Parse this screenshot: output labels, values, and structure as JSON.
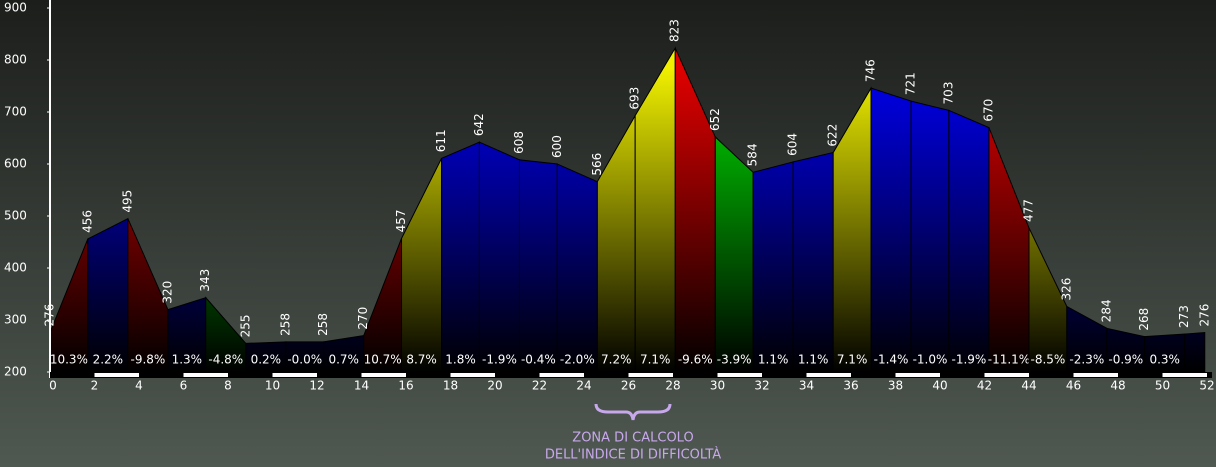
{
  "chart_data": {
    "type": "elevation-profile",
    "x": [
      0,
      1.7,
      3.5,
      5.3,
      7.0,
      8.8,
      10.6,
      12.3,
      14.1,
      15.8,
      17.6,
      19.3,
      21.1,
      22.8,
      24.6,
      26.3,
      28.1,
      29.9,
      31.6,
      33.4,
      35.2,
      36.9,
      38.7,
      40.4,
      42.2,
      44.0,
      45.7,
      47.5,
      49.2,
      51.0,
      51.9
    ],
    "values": [
      276,
      456,
      495,
      320,
      343,
      255,
      258,
      258,
      270,
      457,
      611,
      642,
      608,
      600,
      566,
      693,
      823,
      652,
      584,
      604,
      622,
      746,
      721,
      703,
      670,
      477,
      326,
      284,
      268,
      273,
      276
    ],
    "segment_labels": [
      "10.3%",
      "2.2%",
      "-9.8%",
      "1.3%",
      "-4.8%",
      "0.2%",
      "-0.0%",
      "0.7%",
      "10.7%",
      "8.7%",
      "1.8%",
      "-1.9%",
      "-0.4%",
      "-2.0%",
      "7.2%",
      "7.1%",
      "-9.6%",
      "-3.9%",
      "1.1%",
      "1.1%",
      "7.1%",
      "-1.4%",
      "-1.0%",
      "-1.9%",
      "-11.1%",
      "-8.5%",
      "-2.3%",
      "-0.9%",
      "0.3%",
      null
    ],
    "segment_colors": [
      "#e00000",
      "#0000f0",
      "#e00000",
      "#0000f0",
      "#00e000",
      "#0000f0",
      "#0000f0",
      "#0000f0",
      "#e00000",
      "#f0f000",
      "#0000f0",
      "#0000f0",
      "#0000f0",
      "#0000f0",
      "#f0f000",
      "#f0f000",
      "#e00000",
      "#00e000",
      "#0000f0",
      "#0000f0",
      "#f0f000",
      "#0000f0",
      "#0000f0",
      "#0000f0",
      "#e00000",
      "#f0f000",
      "#0000f0",
      "#0000f0",
      "#0000f0",
      "#0000f0"
    ],
    "xlim": [
      0,
      52
    ],
    "ylim": [
      200,
      900
    ],
    "xticks": [
      0,
      2,
      4,
      6,
      8,
      10,
      12,
      14,
      16,
      18,
      20,
      22,
      24,
      26,
      28,
      30,
      32,
      34,
      36,
      38,
      40,
      42,
      44,
      46,
      48,
      50,
      52
    ],
    "yticks": [
      200,
      300,
      400,
      500,
      600,
      700,
      800,
      900
    ],
    "annotation": [
      "ZONA DI CALCOLO",
      "DELL'INDICE DI DIFFICOLTÀ"
    ]
  }
}
